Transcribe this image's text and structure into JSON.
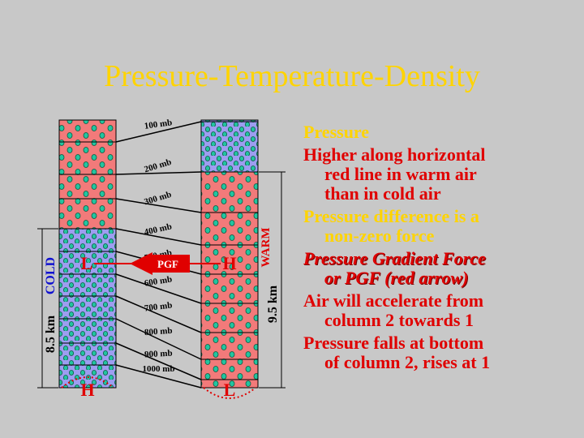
{
  "title": "Pressure-Temperature-Density",
  "diagram": {
    "pressure_levels": [
      "100 mb",
      "200 mb",
      "300 mb",
      "400 mb",
      "500 mb",
      "600 mb",
      "700 mb",
      "800 mb",
      "900 mb",
      "1000 mb"
    ],
    "cold_label": "COLD",
    "warm_label": "WARM",
    "cold_height": "8.5 km",
    "warm_height": "9.5 km",
    "arrow_label": "PGF",
    "cold_top_marker": "L",
    "warm_top_marker": "H",
    "cold_bottom_marker": "H",
    "warm_bottom_marker": "L"
  },
  "bullets": [
    {
      "lines": [
        "Pressure"
      ],
      "color": "yellow",
      "italic": false
    },
    {
      "lines": [
        "Higher along horizontal",
        "red line in warm air",
        "than in cold air"
      ],
      "color": "red",
      "italic": false
    },
    {
      "lines": [
        "Pressure difference is a",
        "non-zero force"
      ],
      "color": "yellow",
      "italic": false
    },
    {
      "lines": [
        "Pressure Gradient Force",
        "or PGF (red arrow)"
      ],
      "color": "red",
      "italic": true
    },
    {
      "lines": [
        "Air will accelerate from",
        "column 2 towards 1"
      ],
      "color": "red",
      "italic": false
    },
    {
      "lines": [
        "Pressure falls at bottom",
        "of column 2, rises at 1"
      ],
      "color": "red",
      "italic": false
    }
  ]
}
